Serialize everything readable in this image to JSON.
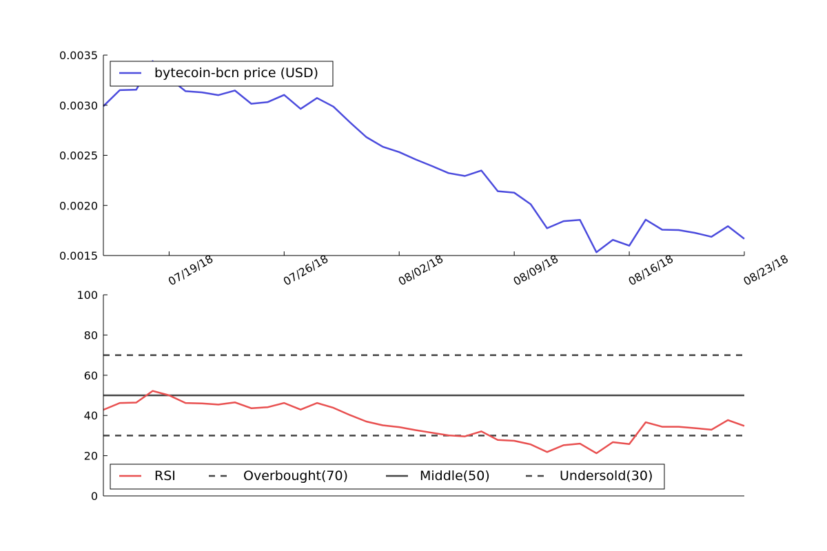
{
  "chart_data": [
    {
      "type": "line",
      "x_axis_type": "date",
      "xlim": [
        "2018-07-15",
        "2018-08-23"
      ],
      "x_ticks": [
        "2018-07-19",
        "2018-07-26",
        "2018-08-02",
        "2018-08-09",
        "2018-08-16",
        "2018-08-23"
      ],
      "x_tick_labels": [
        "07/19/18",
        "07/26/18",
        "08/02/18",
        "08/09/18",
        "08/16/18",
        "08/23/18"
      ],
      "ylim": [
        0.0015,
        0.0035
      ],
      "y_ticks": [
        0.0015,
        0.002,
        0.0025,
        0.003,
        0.0035
      ],
      "y_tick_labels": [
        "0.0015",
        "0.0020",
        "0.0025",
        "0.0030",
        "0.0035"
      ],
      "legend_position": "top-left",
      "grid": false,
      "x": [
        "2018-07-15",
        "2018-07-16",
        "2018-07-17",
        "2018-07-18",
        "2018-07-19",
        "2018-07-20",
        "2018-07-21",
        "2018-07-22",
        "2018-07-23",
        "2018-07-24",
        "2018-07-25",
        "2018-07-26",
        "2018-07-27",
        "2018-07-28",
        "2018-07-29",
        "2018-07-30",
        "2018-07-31",
        "2018-08-01",
        "2018-08-02",
        "2018-08-03",
        "2018-08-04",
        "2018-08-05",
        "2018-08-06",
        "2018-08-07",
        "2018-08-08",
        "2018-08-09",
        "2018-08-10",
        "2018-08-11",
        "2018-08-12",
        "2018-08-13",
        "2018-08-14",
        "2018-08-15",
        "2018-08-16",
        "2018-08-17",
        "2018-08-18",
        "2018-08-19",
        "2018-08-20",
        "2018-08-21",
        "2018-08-22",
        "2018-08-23"
      ],
      "series": [
        {
          "name": "bytecoin-bcn price (USD)",
          "color": "#4b4bdd",
          "values": [
            0.00299,
            0.00315,
            0.003155,
            0.00344,
            0.00327,
            0.00314,
            0.003128,
            0.003101,
            0.003147,
            0.003015,
            0.003031,
            0.003103,
            0.002963,
            0.003072,
            0.002986,
            0.00283,
            0.002682,
            0.002585,
            0.002532,
            0.002459,
            0.002393,
            0.002323,
            0.002294,
            0.002348,
            0.002142,
            0.002127,
            0.002012,
            0.001772,
            0.001843,
            0.001856,
            0.001533,
            0.001657,
            0.001598,
            0.001858,
            0.001758,
            0.001754,
            0.001726,
            0.001687,
            0.001793,
            0.001667
          ]
        }
      ]
    },
    {
      "type": "line",
      "ylim": [
        0,
        100
      ],
      "y_ticks": [
        0,
        20,
        40,
        60,
        80,
        100
      ],
      "y_tick_labels": [
        "0",
        "20",
        "40",
        "60",
        "80",
        "100"
      ],
      "legend_position": "bottom-left",
      "grid": false,
      "series": [
        {
          "name": "RSI",
          "color": "#e84f4f",
          "style": "solid",
          "values": [
            42.8,
            46.2,
            46.4,
            52.2,
            50.0,
            46.2,
            46.0,
            45.4,
            46.5,
            43.6,
            44.1,
            46.2,
            42.9,
            46.2,
            43.8,
            40.2,
            37.0,
            35.1,
            34.2,
            32.7,
            31.4,
            30.1,
            29.6,
            32.1,
            27.8,
            27.4,
            25.6,
            21.8,
            25.2,
            26.0,
            21.2,
            26.7,
            25.8,
            36.6,
            34.4,
            34.4,
            33.7,
            32.9,
            37.7,
            34.8
          ]
        },
        {
          "name": "Overbought(70)",
          "color": "#444444",
          "style": "dashed",
          "value": 70
        },
        {
          "name": "Middle(50)",
          "color": "#444444",
          "style": "solid",
          "value": 50
        },
        {
          "name": "Undersold(30)",
          "color": "#444444",
          "style": "dashed",
          "value": 30
        }
      ]
    }
  ]
}
